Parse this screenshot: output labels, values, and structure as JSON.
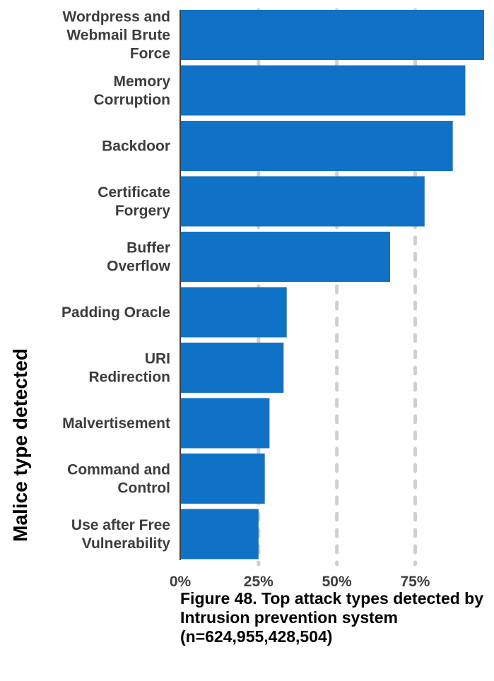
{
  "chart_data": {
    "type": "bar",
    "orientation": "horizontal",
    "categories": [
      "Wordpress and Webmail Brute Force",
      "Memory Corruption",
      "Backdoor",
      "Certificate Forgery",
      "Buffer Overflow",
      "Padding Oracle",
      "URI Redirection",
      "Malvertisement",
      "Command and Control",
      "Use after Free Vulnerability"
    ],
    "category_lines": [
      [
        "Wordpress and",
        "Webmail Brute",
        "Force"
      ],
      [
        "Memory",
        "Corruption"
      ],
      [
        "Backdoor"
      ],
      [
        "Certificate",
        "Forgery"
      ],
      [
        "Buffer",
        "Overflow"
      ],
      [
        "Padding Oracle"
      ],
      [
        "URI",
        "Redirection"
      ],
      [
        "Malvertisement"
      ],
      [
        "Command and",
        "Control"
      ],
      [
        "Use after Free",
        "Vulnerability"
      ]
    ],
    "values": [
      0.97,
      0.91,
      0.87,
      0.78,
      0.67,
      0.34,
      0.33,
      0.285,
      0.27,
      0.25
    ],
    "xlim": [
      0,
      0.97
    ],
    "xticks": [
      0,
      0.25,
      0.5,
      0.75
    ],
    "xtick_labels": [
      "0%",
      "25%",
      "50%",
      "75%"
    ],
    "ylabel": "Malice type detected",
    "grid": "vertical dashed",
    "bar_color": "#0f72c7",
    "grid_color": "#cfcfcf"
  },
  "caption": "Figure 48.  Top attack types detected by Intrusion prevention system (n=624,955,428,504)"
}
